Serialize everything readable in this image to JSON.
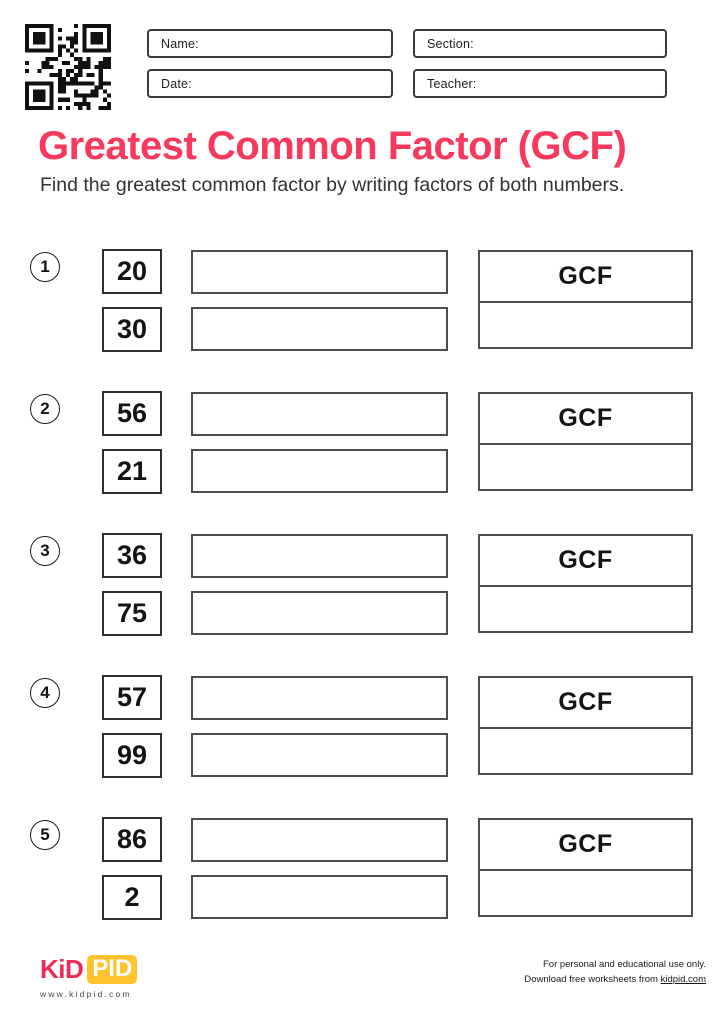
{
  "header": {
    "qr_icon": "qr-code",
    "fields": [
      {
        "id": "name",
        "label": "Name:"
      },
      {
        "id": "section",
        "label": "Section:"
      },
      {
        "id": "date",
        "label": "Date:"
      },
      {
        "id": "teacher",
        "label": "Teacher:"
      }
    ]
  },
  "title": "Greatest Common Factor (GCF)",
  "subtitle": "Find the greatest common factor by writing factors of both numbers.",
  "labels": {
    "gcf": "GCF"
  },
  "problems": [
    {
      "number": "1",
      "first": "20",
      "second": "30"
    },
    {
      "number": "2",
      "first": "56",
      "second": "21"
    },
    {
      "number": "3",
      "first": "36",
      "second": "75"
    },
    {
      "number": "4",
      "first": "57",
      "second": "99"
    },
    {
      "number": "5",
      "first": "86",
      "second": "2"
    }
  ],
  "footer": {
    "logo_kid": "KiD",
    "logo_pid": "PID",
    "logo_url": "www.kidpid.com",
    "note_line1": "For personal and educational use only.",
    "note_line2": "Download free worksheets from",
    "note_link": "kidpid.com"
  },
  "colors": {
    "accent_pink": "#F6395C",
    "logo_pink": "#EE2A56",
    "logo_yellow": "#FFC42D",
    "box_border": "#3a3a3a"
  }
}
